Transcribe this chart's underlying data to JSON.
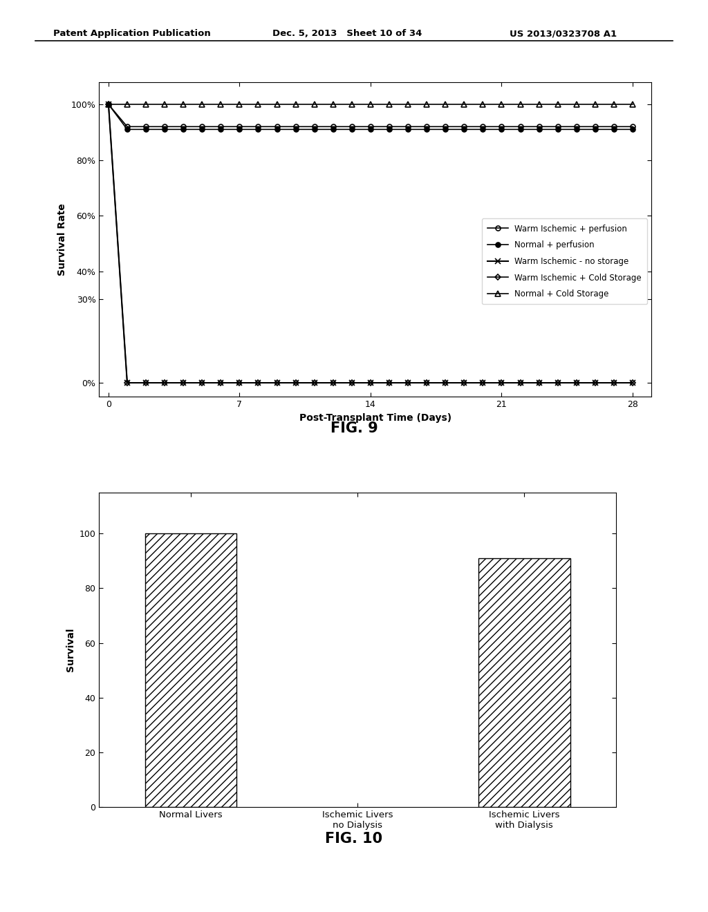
{
  "header_left": "Patent Application Publication",
  "header_mid": "Dec. 5, 2013   Sheet 10 of 34",
  "header_right": "US 2013/0323708 A1",
  "fig9": {
    "xlabel": "Post-Transplant Time (Days)",
    "ylabel": "Survival Rate",
    "yticks": [
      0,
      30,
      40,
      60,
      80,
      100
    ],
    "ytick_labels": [
      "0%",
      "30%",
      "40%",
      "60%",
      "80%",
      "100%"
    ],
    "xticks": [
      0,
      7,
      14,
      21,
      28
    ],
    "xlim": [
      -0.5,
      29
    ],
    "ylim": [
      -5,
      108
    ],
    "series": [
      {
        "label": "Warm Ischemic + perfusion",
        "marker": "o",
        "fillstyle": "none",
        "color": "black",
        "linewidth": 1.2,
        "markersize": 5,
        "x": [
          0,
          1,
          2,
          3,
          4,
          5,
          6,
          7,
          8,
          9,
          10,
          11,
          12,
          13,
          14,
          15,
          16,
          17,
          18,
          19,
          20,
          21,
          22,
          23,
          24,
          25,
          26,
          27,
          28
        ],
        "y": [
          100,
          92,
          92,
          92,
          92,
          92,
          92,
          92,
          92,
          92,
          92,
          92,
          92,
          92,
          92,
          92,
          92,
          92,
          92,
          92,
          92,
          92,
          92,
          92,
          92,
          92,
          92,
          92,
          92
        ]
      },
      {
        "label": "Normal + perfusion",
        "marker": "o",
        "fillstyle": "full",
        "color": "black",
        "linewidth": 1.2,
        "markersize": 5,
        "x": [
          0,
          1,
          2,
          3,
          4,
          5,
          6,
          7,
          8,
          9,
          10,
          11,
          12,
          13,
          14,
          15,
          16,
          17,
          18,
          19,
          20,
          21,
          22,
          23,
          24,
          25,
          26,
          27,
          28
        ],
        "y": [
          100,
          91,
          91,
          91,
          91,
          91,
          91,
          91,
          91,
          91,
          91,
          91,
          91,
          91,
          91,
          91,
          91,
          91,
          91,
          91,
          91,
          91,
          91,
          91,
          91,
          91,
          91,
          91,
          91
        ]
      },
      {
        "label": "Warm Ischemic - no storage",
        "marker": "x",
        "fillstyle": "full",
        "color": "black",
        "linewidth": 1.5,
        "markersize": 6,
        "x": [
          0,
          1,
          2,
          3,
          4,
          5,
          6,
          7,
          8,
          9,
          10,
          11,
          12,
          13,
          14,
          15,
          16,
          17,
          18,
          19,
          20,
          21,
          22,
          23,
          24,
          25,
          26,
          27,
          28
        ],
        "y": [
          100,
          0,
          0,
          0,
          0,
          0,
          0,
          0,
          0,
          0,
          0,
          0,
          0,
          0,
          0,
          0,
          0,
          0,
          0,
          0,
          0,
          0,
          0,
          0,
          0,
          0,
          0,
          0,
          0
        ]
      },
      {
        "label": "Warm Ischemic + Cold Storage",
        "marker": "D",
        "fillstyle": "none",
        "color": "black",
        "linewidth": 1.2,
        "markersize": 4,
        "x": [
          0,
          1,
          2,
          3,
          4,
          5,
          6,
          7,
          8,
          9,
          10,
          11,
          12,
          13,
          14,
          15,
          16,
          17,
          18,
          19,
          20,
          21,
          22,
          23,
          24,
          25,
          26,
          27,
          28
        ],
        "y": [
          100,
          0,
          0,
          0,
          0,
          0,
          0,
          0,
          0,
          0,
          0,
          0,
          0,
          0,
          0,
          0,
          0,
          0,
          0,
          0,
          0,
          0,
          0,
          0,
          0,
          0,
          0,
          0,
          0
        ]
      },
      {
        "label": "Normal + Cold Storage",
        "marker": "^",
        "fillstyle": "none",
        "color": "black",
        "linewidth": 1.2,
        "markersize": 6,
        "x": [
          0,
          1,
          2,
          3,
          4,
          5,
          6,
          7,
          8,
          9,
          10,
          11,
          12,
          13,
          14,
          15,
          16,
          17,
          18,
          19,
          20,
          21,
          22,
          23,
          24,
          25,
          26,
          27,
          28
        ],
        "y": [
          100,
          100,
          100,
          100,
          100,
          100,
          100,
          100,
          100,
          100,
          100,
          100,
          100,
          100,
          100,
          100,
          100,
          100,
          100,
          100,
          100,
          100,
          100,
          100,
          100,
          100,
          100,
          100,
          100
        ]
      }
    ]
  },
  "fig10": {
    "ylabel": "Survival",
    "yticks": [
      0,
      20,
      40,
      60,
      80,
      100
    ],
    "ylim": [
      0,
      115
    ],
    "categories": [
      "Normal Livers",
      "Ischemic Livers\nno Dialysis",
      "Ischemic Livers\nwith Dialysis"
    ],
    "values": [
      100,
      0,
      91
    ],
    "bar_color": "white",
    "hatch": "///",
    "edgecolor": "black"
  },
  "fig9_label": "FIG. 9",
  "fig10_label": "FIG. 10"
}
